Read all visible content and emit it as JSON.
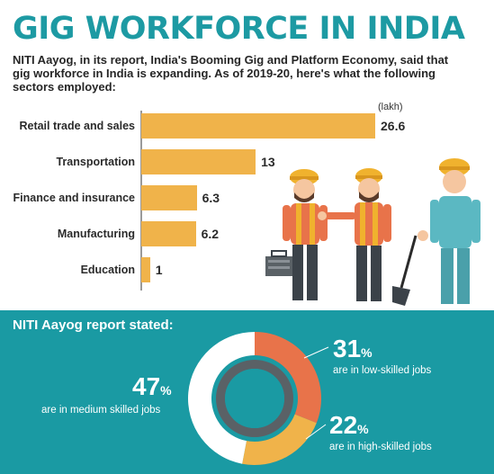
{
  "header": {
    "title": "GIG WORKFORCE IN INDIA",
    "intro": "NITI Aayog, in its report, India's Booming Gig and Platform Economy, said that gig workforce in India is expanding. As of 2019-20, here's what the following sectors employed:"
  },
  "chart_data": [
    {
      "type": "bar",
      "orientation": "horizontal",
      "unit": "(lakh)",
      "categories": [
        "Retail trade and sales",
        "Transportation",
        "Finance and insurance",
        "Manufacturing",
        "Education"
      ],
      "values": [
        26.6,
        13,
        6.3,
        6.2,
        1
      ],
      "value_labels": [
        "26.6",
        "13",
        "6.3",
        "6.2",
        "1"
      ],
      "bar_color": "#f0b34a"
    },
    {
      "type": "pie",
      "title": "NITI Aayog report stated:",
      "slices": [
        {
          "value": 31,
          "big": "31",
          "desc": "are in low-skilled jobs",
          "color": "#e8734a"
        },
        {
          "value": 22,
          "big": "22",
          "desc": "are in high-skilled jobs",
          "color": "#f0b34a"
        },
        {
          "value": 47,
          "big": "47",
          "desc": "are in medium skilled jobs",
          "color": "#ffffff"
        }
      ],
      "percent_sign": "%"
    }
  ],
  "colors": {
    "title": "#1d9aa3",
    "teal_panel": "#1a9aa3",
    "bar": "#f0b34a",
    "low_skill": "#e8734a",
    "inner_ring": "#5a6166"
  },
  "illustration": {
    "figures": [
      "worker-with-toolbox-icon",
      "worker-pointing-icon",
      "worker-with-shovel-icon"
    ]
  }
}
